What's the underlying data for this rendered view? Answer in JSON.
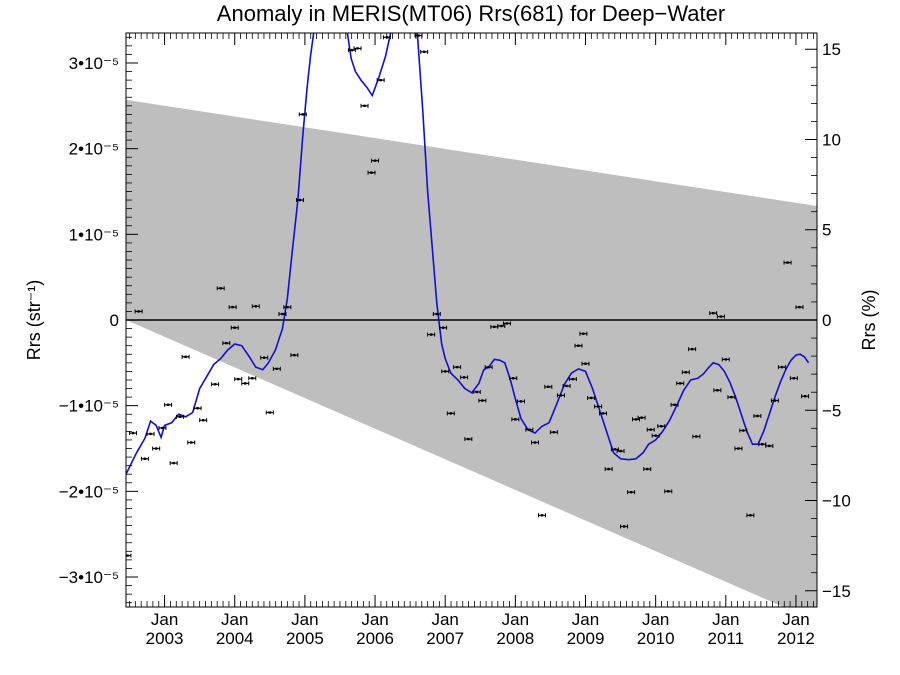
{
  "chart_data": {
    "type": "scatter",
    "title": "Anomaly in MERIS(MT06) Rrs(681) for Deep−Water",
    "ylabel": "Rrs (str⁻¹)",
    "y2label": "Rrs (%)",
    "xlim": [
      2002.45,
      2012.3
    ],
    "ylim": [
      -3.35e-05,
      3.35e-05
    ],
    "y2lim": [
      -15.9,
      15.9
    ],
    "grid": false,
    "y_ticks": [
      {
        "value": 3e-05,
        "label": "3•10⁻⁵"
      },
      {
        "value": 2e-05,
        "label": "2•10⁻⁵"
      },
      {
        "value": 1e-05,
        "label": "1•10⁻⁵"
      },
      {
        "value": 0,
        "label": "0"
      },
      {
        "value": -1e-05,
        "label": "−1•10⁻⁵"
      },
      {
        "value": -2e-05,
        "label": "−2•10⁻⁵"
      },
      {
        "value": -3e-05,
        "label": "−3•10⁻⁵"
      }
    ],
    "y2_ticks": [
      {
        "value": 15,
        "label": "15"
      },
      {
        "value": 10,
        "label": "10"
      },
      {
        "value": 5,
        "label": "5"
      },
      {
        "value": 0,
        "label": "0"
      },
      {
        "value": -5,
        "label": "−5"
      },
      {
        "value": -10,
        "label": "−10"
      },
      {
        "value": -15,
        "label": "−15"
      }
    ],
    "x_ticks": [
      {
        "value": 2003.0,
        "month": "Jan",
        "year": "2003"
      },
      {
        "value": 2004.0,
        "month": "Jan",
        "year": "2004"
      },
      {
        "value": 2005.0,
        "month": "Jan",
        "year": "2005"
      },
      {
        "value": 2006.0,
        "month": "Jan",
        "year": "2006"
      },
      {
        "value": 2007.0,
        "month": "Jan",
        "year": "2007"
      },
      {
        "value": 2008.0,
        "month": "Jan",
        "year": "2008"
      },
      {
        "value": 2009.0,
        "month": "Jan",
        "year": "2009"
      },
      {
        "value": 2010.0,
        "month": "Jan",
        "year": "2010"
      },
      {
        "value": 2011.0,
        "month": "Jan",
        "year": "2011"
      },
      {
        "value": 2012.0,
        "month": "Jan",
        "year": "2012"
      }
    ],
    "envelope_band": {
      "upper": [
        [
          2002.45,
          2.57e-05
        ],
        [
          2012.3,
          1.33e-05
        ]
      ],
      "lower": [
        [
          2002.45,
          0.0
        ],
        [
          2012.3,
          -3.52e-05
        ]
      ],
      "color": "#bebebe"
    },
    "zero_line": {
      "value": 0,
      "color": "#000000"
    },
    "points_color": "#000000",
    "points": [
      [
        2002.47,
        -2.75e-05
      ],
      [
        2002.55,
        -1.32e-05
      ],
      [
        2002.63,
        1e-06
      ],
      [
        2002.72,
        -1.62e-05
      ],
      [
        2002.8,
        -1.33e-05
      ],
      [
        2002.88,
        -1.5e-05
      ],
      [
        2002.97,
        -1.26e-05
      ],
      [
        2003.05,
        -9.9e-06
      ],
      [
        2003.13,
        -1.67e-05
      ],
      [
        2003.22,
        -1.13e-05
      ],
      [
        2003.3,
        -4.3e-06
      ],
      [
        2003.38,
        -1.43e-05
      ],
      [
        2003.47,
        -1.03e-05
      ],
      [
        2003.55,
        -1.17e-05
      ],
      [
        2003.72,
        -7.5e-06
      ],
      [
        2003.8,
        3.7e-06
      ],
      [
        2003.88,
        -2.7e-06
      ],
      [
        2003.97,
        1.5e-06
      ],
      [
        2004.0,
        -9e-07
      ],
      [
        2004.05,
        -6.9e-06
      ],
      [
        2004.15,
        -7.4e-06
      ],
      [
        2004.25,
        -6.8e-06
      ],
      [
        2004.3,
        1.6e-06
      ],
      [
        2004.42,
        -4.4e-06
      ],
      [
        2004.5,
        -1.08e-05
      ],
      [
        2004.6,
        -5.7e-06
      ],
      [
        2004.68,
        7e-07
      ],
      [
        2004.75,
        1.5e-06
      ],
      [
        2004.85,
        -4.1e-06
      ],
      [
        2004.93,
        1.4e-05
      ],
      [
        2004.97,
        2.4e-05
      ],
      [
        2005.67,
        3.15e-05
      ],
      [
        2005.75,
        3.17e-05
      ],
      [
        2005.85,
        2.5e-05
      ],
      [
        2005.95,
        1.72e-05
      ],
      [
        2006.0,
        1.86e-05
      ],
      [
        2006.08,
        2.8e-05
      ],
      [
        2006.17,
        3.3e-05
      ],
      [
        2006.62,
        3.32e-05
      ],
      [
        2006.7,
        3.13e-05
      ],
      [
        2006.8,
        -1.7e-06
      ],
      [
        2006.88,
        7e-07
      ],
      [
        2006.97,
        -9e-07
      ],
      [
        2007.0,
        -6e-06
      ],
      [
        2007.08,
        -1.09e-05
      ],
      [
        2007.17,
        -5.5e-06
      ],
      [
        2007.27,
        -6.7e-06
      ],
      [
        2007.33,
        -1.39e-05
      ],
      [
        2007.45,
        -8.4e-06
      ],
      [
        2007.53,
        -9.4e-06
      ],
      [
        2007.62,
        -5.5e-06
      ],
      [
        2007.7,
        -8e-07
      ],
      [
        2007.8,
        -7e-07
      ],
      [
        2007.88,
        -4e-07
      ],
      [
        2007.97,
        -6.8e-06
      ],
      [
        2008.0,
        -1.16e-05
      ],
      [
        2008.08,
        -9.5e-06
      ],
      [
        2008.2,
        -1.28e-05
      ],
      [
        2008.28,
        -1.43e-05
      ],
      [
        2008.38,
        -2.28e-05
      ],
      [
        2008.47,
        -7.8e-06
      ],
      [
        2008.55,
        -1.31e-05
      ],
      [
        2008.65,
        -8.8e-06
      ],
      [
        2008.73,
        -7.7e-06
      ],
      [
        2008.82,
        -6.9e-06
      ],
      [
        2008.9,
        -3e-06
      ],
      [
        2008.97,
        -1.6e-06
      ],
      [
        2009.0,
        -5.1e-06
      ],
      [
        2009.08,
        -9.1e-06
      ],
      [
        2009.18,
        -1.01e-05
      ],
      [
        2009.25,
        -1.09e-05
      ],
      [
        2009.33,
        -1.74e-05
      ],
      [
        2009.42,
        -1.51e-05
      ],
      [
        2009.5,
        -1.53e-05
      ],
      [
        2009.55,
        -2.41e-05
      ],
      [
        2009.65,
        -2.01e-05
      ],
      [
        2009.72,
        -1.16e-05
      ],
      [
        2009.8,
        -1.14e-05
      ],
      [
        2009.88,
        -1.74e-05
      ],
      [
        2009.93,
        -1.28e-05
      ],
      [
        2010.0,
        -1.35e-05
      ],
      [
        2010.08,
        -1.24e-05
      ],
      [
        2010.18,
        -2e-05
      ],
      [
        2010.27,
        -9.9e-06
      ],
      [
        2010.35,
        -7.4e-06
      ],
      [
        2010.43,
        -6.1e-06
      ],
      [
        2010.52,
        -3.4e-06
      ],
      [
        2010.58,
        -1.36e-05
      ],
      [
        2010.82,
        8e-07
      ],
      [
        2010.88,
        -8.2e-06
      ],
      [
        2010.93,
        4e-07
      ],
      [
        2011.0,
        -4.6e-06
      ],
      [
        2011.08,
        -9e-06
      ],
      [
        2011.18,
        -1.5e-05
      ],
      [
        2011.25,
        -1.29e-05
      ],
      [
        2011.35,
        -2.28e-05
      ],
      [
        2011.45,
        -1.12e-05
      ],
      [
        2011.52,
        -1.45e-05
      ],
      [
        2011.62,
        -1.47e-05
      ],
      [
        2011.7,
        -9.4e-06
      ],
      [
        2011.8,
        -5.5e-06
      ],
      [
        2011.88,
        6.7e-06
      ],
      [
        2011.97,
        -6.8e-06
      ],
      [
        2012.05,
        1.5e-06
      ],
      [
        2012.13,
        -8.9e-06
      ]
    ],
    "series": [
      {
        "type": "line",
        "color": "#1010d0",
        "points": [
          [
            2002.45,
            -1.8e-05
          ],
          [
            2002.6,
            -1.55e-05
          ],
          [
            2002.72,
            -1.38e-05
          ],
          [
            2002.8,
            -1.18e-05
          ],
          [
            2002.88,
            -1.23e-05
          ],
          [
            2002.95,
            -1.37e-05
          ],
          [
            2003.0,
            -1.23e-05
          ],
          [
            2003.1,
            -1.2e-05
          ],
          [
            2003.2,
            -1.1e-05
          ],
          [
            2003.3,
            -1.13e-05
          ],
          [
            2003.4,
            -1.08e-05
          ],
          [
            2003.5,
            -8e-06
          ],
          [
            2003.6,
            -6.6e-06
          ],
          [
            2003.7,
            -5.2e-06
          ],
          [
            2003.8,
            -4.5e-06
          ],
          [
            2003.9,
            -3.5e-06
          ],
          [
            2004.0,
            -2.8e-06
          ],
          [
            2004.1,
            -3e-06
          ],
          [
            2004.2,
            -4.2e-06
          ],
          [
            2004.3,
            -5.5e-06
          ],
          [
            2004.4,
            -5.8e-06
          ],
          [
            2004.48,
            -5e-06
          ],
          [
            2004.58,
            -3.5e-06
          ],
          [
            2004.68,
            -1e-06
          ],
          [
            2004.75,
            2.5e-06
          ],
          [
            2004.82,
            8e-06
          ],
          [
            2004.9,
            1.4e-05
          ],
          [
            2004.97,
            2.15e-05
          ],
          [
            2005.03,
            2.7e-05
          ],
          [
            2005.08,
            3.08e-05
          ],
          [
            2005.13,
            3.38e-05
          ],
          [
            2005.6,
            3.38e-05
          ],
          [
            2005.66,
            3.05e-05
          ],
          [
            2005.72,
            2.9e-05
          ],
          [
            2005.8,
            2.8e-05
          ],
          [
            2005.88,
            2.72e-05
          ],
          [
            2005.96,
            2.62e-05
          ],
          [
            2006.05,
            2.82e-05
          ],
          [
            2006.15,
            3.08e-05
          ],
          [
            2006.23,
            3.38e-05
          ],
          [
            2006.6,
            3.38e-05
          ],
          [
            2006.68,
            2.45e-05
          ],
          [
            2006.75,
            1.5e-05
          ],
          [
            2006.82,
            8e-06
          ],
          [
            2006.88,
            2e-06
          ],
          [
            2006.95,
            -2.8e-06
          ],
          [
            2007.0,
            -4.5e-06
          ],
          [
            2007.08,
            -6.2e-06
          ],
          [
            2007.18,
            -7e-06
          ],
          [
            2007.28,
            -8e-06
          ],
          [
            2007.38,
            -8.5e-06
          ],
          [
            2007.48,
            -7.4e-06
          ],
          [
            2007.55,
            -5.8e-06
          ],
          [
            2007.62,
            -5.5e-06
          ],
          [
            2007.7,
            -4.6e-06
          ],
          [
            2007.78,
            -4.7e-06
          ],
          [
            2007.85,
            -5e-06
          ],
          [
            2007.93,
            -7e-06
          ],
          [
            2008.0,
            -9.2e-06
          ],
          [
            2008.08,
            -1.15e-05
          ],
          [
            2008.18,
            -1.28e-05
          ],
          [
            2008.28,
            -1.32e-05
          ],
          [
            2008.38,
            -1.24e-05
          ],
          [
            2008.48,
            -1.2e-05
          ],
          [
            2008.58,
            -1e-05
          ],
          [
            2008.7,
            -7.5e-06
          ],
          [
            2008.8,
            -6.2e-06
          ],
          [
            2008.9,
            -5.7e-06
          ],
          [
            2009.0,
            -6e-06
          ],
          [
            2009.1,
            -8e-06
          ],
          [
            2009.2,
            -1.05e-05
          ],
          [
            2009.3,
            -1.3e-05
          ],
          [
            2009.4,
            -1.55e-05
          ],
          [
            2009.5,
            -1.62e-05
          ],
          [
            2009.62,
            -1.63e-05
          ],
          [
            2009.72,
            -1.62e-05
          ],
          [
            2009.82,
            -1.55e-05
          ],
          [
            2009.9,
            -1.45e-05
          ],
          [
            2010.0,
            -1.4e-05
          ],
          [
            2010.1,
            -1.3e-05
          ],
          [
            2010.2,
            -1.17e-05
          ],
          [
            2010.3,
            -1e-05
          ],
          [
            2010.4,
            -8.2e-06
          ],
          [
            2010.5,
            -7e-06
          ],
          [
            2010.6,
            -6.8e-06
          ],
          [
            2010.68,
            -6.3e-06
          ],
          [
            2010.75,
            -5.6e-06
          ],
          [
            2010.82,
            -5e-06
          ],
          [
            2010.9,
            -5.2e-06
          ],
          [
            2010.98,
            -6e-06
          ],
          [
            2011.06,
            -7.3e-06
          ],
          [
            2011.14,
            -9e-06
          ],
          [
            2011.22,
            -1.1e-05
          ],
          [
            2011.3,
            -1.3e-05
          ],
          [
            2011.38,
            -1.45e-05
          ],
          [
            2011.46,
            -1.45e-05
          ],
          [
            2011.54,
            -1.3e-05
          ],
          [
            2011.62,
            -1.1e-05
          ],
          [
            2011.7,
            -9e-06
          ],
          [
            2011.78,
            -7.2e-06
          ],
          [
            2011.86,
            -5.7e-06
          ],
          [
            2011.93,
            -4.7e-06
          ],
          [
            2012.0,
            -4.1e-06
          ],
          [
            2012.06,
            -4e-06
          ],
          [
            2012.12,
            -4.3e-06
          ],
          [
            2012.18,
            -5e-06
          ]
        ]
      }
    ]
  }
}
